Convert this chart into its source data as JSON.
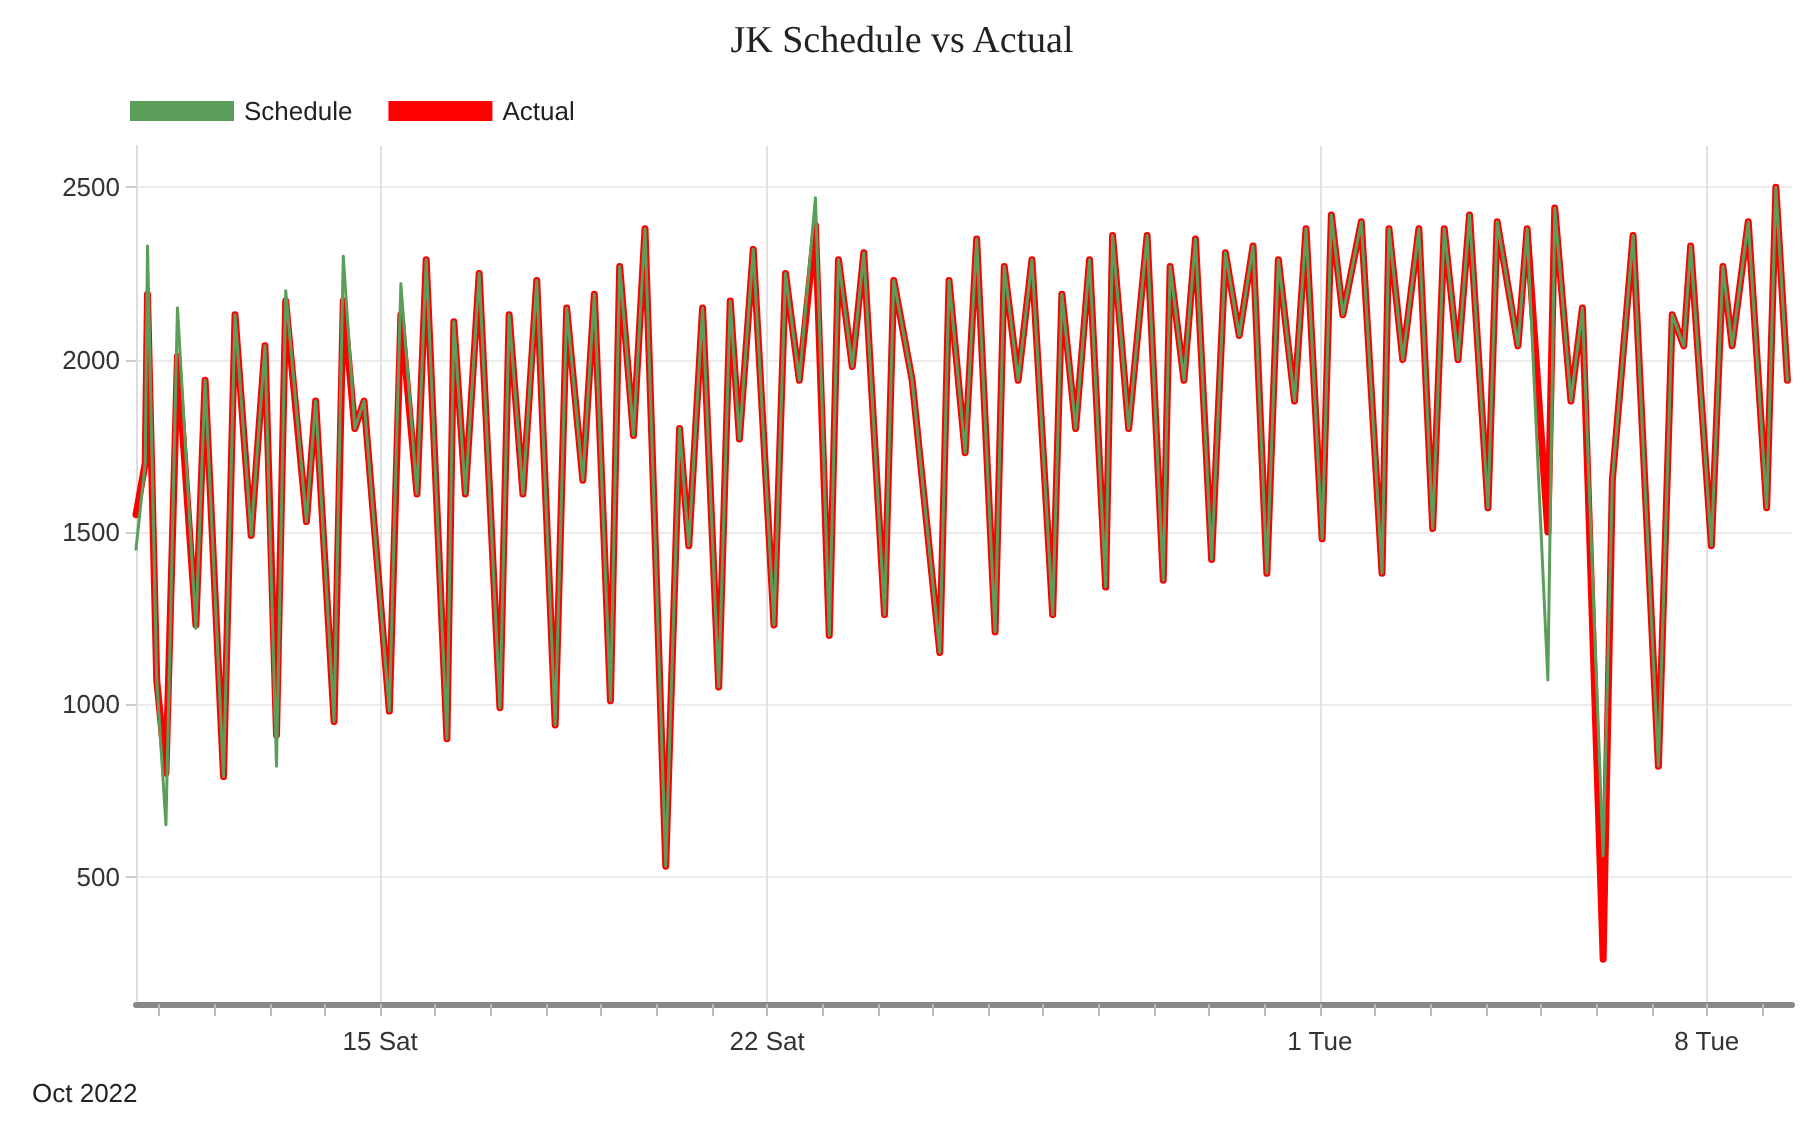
{
  "chart_data": {
    "type": "line",
    "title": "JK Schedule vs Actual",
    "annotations": [
      "Oct 2022"
    ],
    "xlim": [
      "2022-10-10T14:00",
      "2022-11-09T13:00"
    ],
    "xticks": [
      {
        "value": "2022-10-11T00:00",
        "label": null
      },
      {
        "value": "2022-10-12T00:00",
        "label": null
      },
      {
        "value": "2022-10-13T00:00",
        "label": null
      },
      {
        "value": "2022-10-14T00:00",
        "label": null
      },
      {
        "value": "2022-10-15T00:00",
        "label": "15 Sat"
      },
      {
        "value": "2022-10-16T00:00",
        "label": null
      },
      {
        "value": "2022-10-17T00:00",
        "label": null
      },
      {
        "value": "2022-10-18T00:00",
        "label": null
      },
      {
        "value": "2022-10-19T00:00",
        "label": null
      },
      {
        "value": "2022-10-20T00:00",
        "label": null
      },
      {
        "value": "2022-10-21T00:00",
        "label": null
      },
      {
        "value": "2022-10-22T00:00",
        "label": "22 Sat"
      },
      {
        "value": "2022-10-23T00:00",
        "label": null
      },
      {
        "value": "2022-10-24T00:00",
        "label": null
      },
      {
        "value": "2022-10-25T00:00",
        "label": null
      },
      {
        "value": "2022-10-26T00:00",
        "label": null
      },
      {
        "value": "2022-10-27T00:00",
        "label": null
      },
      {
        "value": "2022-10-28T00:00",
        "label": null
      },
      {
        "value": "2022-10-29T00:00",
        "label": null
      },
      {
        "value": "2022-10-30T00:00",
        "label": null
      },
      {
        "value": "2022-10-31T00:00",
        "label": null
      },
      {
        "value": "2022-11-01T00:00",
        "label": "1 Tue"
      },
      {
        "value": "2022-11-02T00:00",
        "label": null
      },
      {
        "value": "2022-11-03T00:00",
        "label": null
      },
      {
        "value": "2022-11-04T00:00",
        "label": null
      },
      {
        "value": "2022-11-05T00:00",
        "label": null
      },
      {
        "value": "2022-11-06T00:00",
        "label": null
      },
      {
        "value": "2022-11-07T00:00",
        "label": null
      },
      {
        "value": "2022-11-08T00:00",
        "label": "8 Tue"
      },
      {
        "value": "2022-11-09T00:00",
        "label": null
      }
    ],
    "ylim": [
      130,
      2620
    ],
    "yticks": [
      500,
      1000,
      1500,
      2000,
      2500
    ],
    "grid": true,
    "legend": "top left",
    "marker": "none",
    "line_style": "solid",
    "x": [
      "2022-10-10T14:00",
      "2022-10-10T18:00",
      "2022-10-10T19:00",
      "2022-10-10T23:00",
      "2022-10-11T03:00",
      "2022-10-11T08:00",
      "2022-10-11T16:00",
      "2022-10-11T20:00",
      "2022-10-12T04:00",
      "2022-10-12T09:00",
      "2022-10-12T16:00",
      "2022-10-12T22:00",
      "2022-10-13T03:00",
      "2022-10-13T07:00",
      "2022-10-13T16:00",
      "2022-10-13T20:00",
      "2022-10-14T04:00",
      "2022-10-14T08:00",
      "2022-10-14T13:00",
      "2022-10-14T17:00",
      "2022-10-15T04:00",
      "2022-10-15T09:00",
      "2022-10-15T16:00",
      "2022-10-15T20:00",
      "2022-10-16T05:00",
      "2022-10-16T08:00",
      "2022-10-16T13:00",
      "2022-10-16T19:00",
      "2022-10-17T04:00",
      "2022-10-17T08:00",
      "2022-10-17T14:00",
      "2022-10-17T20:00",
      "2022-10-18T04:00",
      "2022-10-18T09:00",
      "2022-10-18T16:00",
      "2022-10-18T21:00",
      "2022-10-19T04:00",
      "2022-10-19T08:00",
      "2022-10-19T14:00",
      "2022-10-19T19:00",
      "2022-10-20T04:00",
      "2022-10-20T10:00",
      "2022-10-20T14:00",
      "2022-10-20T20:00",
      "2022-10-21T03:00",
      "2022-10-21T08:00",
      "2022-10-21T12:00",
      "2022-10-21T18:00",
      "2022-10-22T03:00",
      "2022-10-22T08:00",
      "2022-10-22T14:00",
      "2022-10-22T21:00",
      "2022-10-23T03:00",
      "2022-10-23T07:00",
      "2022-10-23T13:00",
      "2022-10-23T18:00",
      "2022-10-24T03:00",
      "2022-10-24T07:00",
      "2022-10-24T15:00",
      "2022-10-25T03:00",
      "2022-10-25T07:00",
      "2022-10-25T14:00",
      "2022-10-25T19:00",
      "2022-10-26T03:00",
      "2022-10-26T07:00",
      "2022-10-26T13:00",
      "2022-10-26T19:00",
      "2022-10-27T04:00",
      "2022-10-27T08:00",
      "2022-10-27T14:00",
      "2022-10-27T20:00",
      "2022-10-28T03:00",
      "2022-10-28T06:00",
      "2022-10-28T13:00",
      "2022-10-28T21:00",
      "2022-10-29T04:00",
      "2022-10-29T07:00",
      "2022-10-29T13:00",
      "2022-10-29T18:00",
      "2022-10-30T01:00",
      "2022-10-30T07:00",
      "2022-10-30T13:00",
      "2022-10-30T19:00",
      "2022-10-31T01:00",
      "2022-10-31T06:00",
      "2022-10-31T13:00",
      "2022-10-31T18:00",
      "2022-11-01T01:00",
      "2022-11-01T05:00",
      "2022-11-01T10:00",
      "2022-11-01T18:00",
      "2022-11-02T03:00",
      "2022-11-02T06:00",
      "2022-11-02T12:00",
      "2022-11-02T19:00",
      "2022-11-03T01:00",
      "2022-11-03T06:00",
      "2022-11-03T12:00",
      "2022-11-03T17:00",
      "2022-11-04T01:00",
      "2022-11-04T05:00",
      "2022-11-04T14:00",
      "2022-11-04T18:00",
      "2022-11-05T03:00",
      "2022-11-05T06:00",
      "2022-11-05T13:00",
      "2022-11-05T18:00",
      "2022-11-06T03:00",
      "2022-11-06T07:00",
      "2022-11-06T16:00",
      "2022-11-07T03:00",
      "2022-11-07T09:00",
      "2022-11-07T14:00",
      "2022-11-07T17:00",
      "2022-11-08T02:00",
      "2022-11-08T07:00",
      "2022-11-08T11:00",
      "2022-11-08T18:00",
      "2022-11-09T02:00",
      "2022-11-09T06:00",
      "2022-11-09T11:00"
    ],
    "series": [
      {
        "name": "Schedule",
        "color": "#5a9e5a",
        "values": [
          1450,
          1700,
          2330,
          1070,
          650,
          2150,
          1220,
          1940,
          790,
          2130,
          1490,
          2040,
          820,
          2200,
          1530,
          1880,
          950,
          2300,
          1800,
          1880,
          980,
          2220,
          1610,
          2290,
          900,
          2110,
          1610,
          2250,
          990,
          2130,
          1610,
          2230,
          940,
          2150,
          1650,
          2190,
          1010,
          2270,
          1780,
          2380,
          530,
          1800,
          1460,
          2150,
          1050,
          2170,
          1770,
          2320,
          1230,
          2250,
          1940,
          2470,
          1200,
          2290,
          1980,
          2310,
          1260,
          2230,
          1940,
          1150,
          2230,
          1730,
          2350,
          1210,
          2270,
          1940,
          2290,
          1260,
          2190,
          1800,
          2290,
          1340,
          2360,
          1800,
          2360,
          1360,
          2270,
          1940,
          2350,
          1420,
          2310,
          2070,
          2330,
          1380,
          2290,
          1880,
          2380,
          1480,
          2420,
          2130,
          2400,
          1380,
          2380,
          2000,
          2380,
          1510,
          2380,
          2000,
          2420,
          1570,
          2400,
          2040,
          2380,
          1070,
          2440,
          1880,
          2150,
          560,
          1650,
          2360,
          820,
          2130,
          2040,
          2330,
          1460,
          2270,
          2040,
          2400,
          1570,
          2500,
          1940
        ]
      },
      {
        "name": "Actual",
        "color": "#ff0000",
        "values": [
          1550,
          1700,
          2190,
          1070,
          800,
          2010,
          1230,
          1940,
          790,
          2130,
          1490,
          2040,
          910,
          2170,
          1530,
          1880,
          950,
          2170,
          1800,
          1880,
          980,
          2130,
          1610,
          2290,
          900,
          2110,
          1610,
          2250,
          990,
          2130,
          1610,
          2230,
          940,
          2150,
          1650,
          2190,
          1010,
          2270,
          1780,
          2380,
          530,
          1800,
          1460,
          2150,
          1050,
          2170,
          1770,
          2320,
          1230,
          2250,
          1940,
          2390,
          1200,
          2290,
          1980,
          2310,
          1260,
          2230,
          1940,
          1150,
          2230,
          1730,
          2350,
          1210,
          2270,
          1940,
          2290,
          1260,
          2190,
          1800,
          2290,
          1340,
          2360,
          1800,
          2360,
          1360,
          2270,
          1940,
          2350,
          1420,
          2310,
          2070,
          2330,
          1380,
          2290,
          1880,
          2380,
          1480,
          2420,
          2130,
          2400,
          1380,
          2380,
          2000,
          2380,
          1510,
          2380,
          2000,
          2420,
          1570,
          2400,
          2040,
          2380,
          1500,
          2440,
          1880,
          2150,
          260,
          1650,
          2360,
          820,
          2130,
          2040,
          2330,
          1460,
          2270,
          2040,
          2400,
          1570,
          2500,
          1940
        ]
      }
    ]
  }
}
